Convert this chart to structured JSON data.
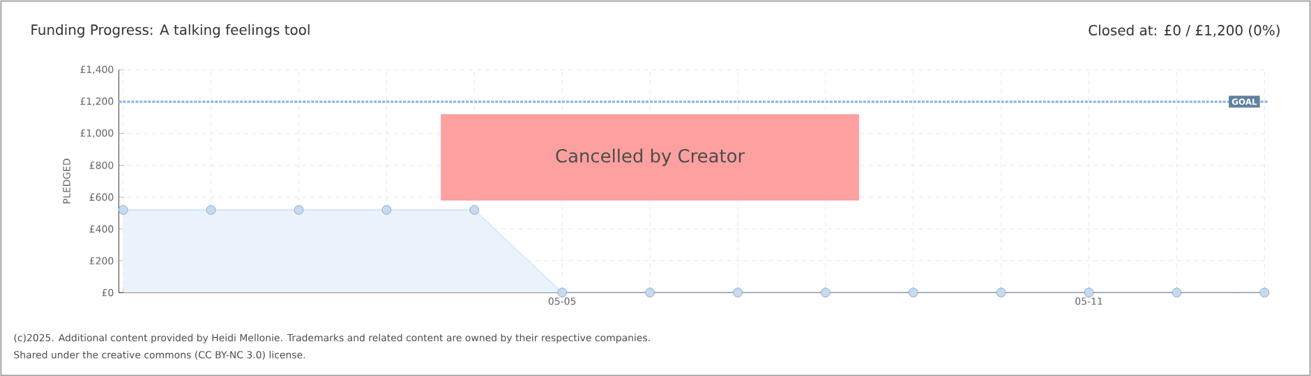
{
  "chart_data": {
    "type": "area",
    "title": "Funding Progress: A talking feelings tool",
    "subtitle": "Closed at:  £0 /  £1,200 (0%)",
    "ylabel": "PLEDGED",
    "categories": [
      null,
      null,
      null,
      null,
      null,
      "05-05",
      null,
      null,
      null,
      null,
      null,
      "05-11",
      null,
      null
    ],
    "series": [
      {
        "color": "#a9cbee",
        "values": [
          520,
          520,
          520,
          520,
          520,
          0,
          0,
          0,
          0,
          0,
          0,
          0,
          0,
          0
        ]
      }
    ],
    "ylim": [
      0,
      1400
    ],
    "yticks": [
      {
        "value": 0,
        "label": "£0"
      },
      {
        "value": 200,
        "label": "£200"
      },
      {
        "value": 400,
        "label": "£400"
      },
      {
        "value": 600,
        "label": "£600"
      },
      {
        "value": 800,
        "label": "£800"
      },
      {
        "value": 1000,
        "label": "£1,000"
      },
      {
        "value": 1200,
        "label": "£1,200"
      },
      {
        "value": 1400,
        "label": "£1,400"
      }
    ],
    "grid": true,
    "marker": "circle",
    "line_style": "solid",
    "ref_lines": [
      {
        "axis": "y",
        "value": 1200,
        "label": "GOAL",
        "color": "#89b7e7",
        "line_style": "dashed"
      }
    ],
    "annotations": [
      "Cancelled by Creator",
      "(c)2025. Additional content provided by Heidi Mellonie. Trademarks and related content are owned by their respective companies.",
      "Shared under the creative commons (CC BY-NC 3.0) license."
    ]
  }
}
